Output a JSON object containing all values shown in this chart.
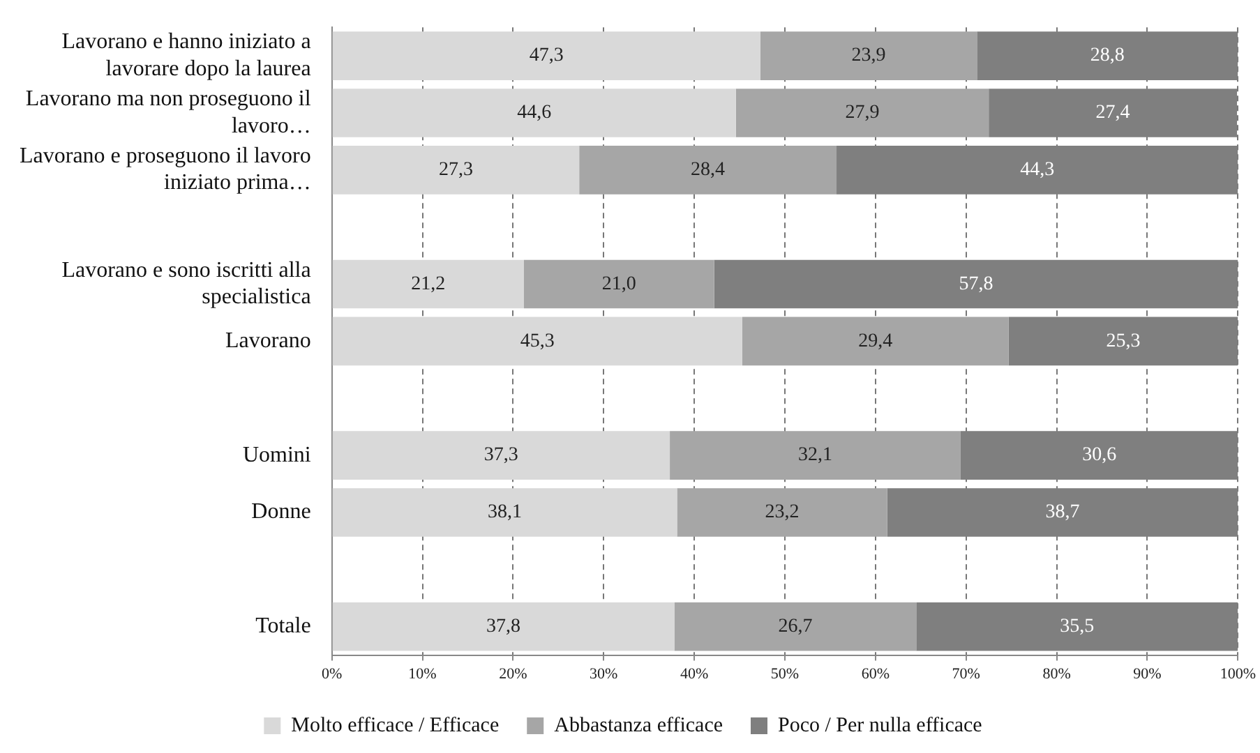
{
  "chart_data": {
    "type": "bar",
    "orientation": "horizontal",
    "stacked": true,
    "categories": [
      "Lavorano e hanno iniziato a lavorare dopo la laurea",
      "Lavorano ma non proseguono il lavoro…",
      "Lavorano e proseguono il lavoro iniziato prima…",
      null,
      "Lavorano e sono iscritti alla specialistica",
      "Lavorano",
      null,
      "Uomini",
      "Donne",
      null,
      "Totale"
    ],
    "series": [
      {
        "name": "Molto efficace / Efficace",
        "color": "#d9d9d9",
        "values": [
          47.3,
          44.6,
          27.3,
          null,
          21.2,
          45.3,
          null,
          37.3,
          38.1,
          null,
          37.8
        ],
        "value_labels": [
          "47,3",
          "44,6",
          "27,3",
          null,
          "21,2",
          "45,3",
          null,
          "37,3",
          "38,1",
          null,
          "37,8"
        ]
      },
      {
        "name": "Abbastanza efficace",
        "color": "#a6a6a6",
        "values": [
          23.9,
          27.9,
          28.4,
          null,
          21.0,
          29.4,
          null,
          32.1,
          23.2,
          null,
          26.7
        ],
        "value_labels": [
          "23,9",
          "27,9",
          "28,4",
          null,
          "21,0",
          "29,4",
          null,
          "32,1",
          "23,2",
          null,
          "26,7"
        ]
      },
      {
        "name": "Poco / Per nulla efficace",
        "color": "#7f7f7f",
        "values": [
          28.8,
          27.4,
          44.3,
          null,
          57.8,
          25.3,
          null,
          30.6,
          38.7,
          null,
          35.5
        ],
        "value_labels": [
          "28,8",
          "27,4",
          "44,3",
          null,
          "57,8",
          "25,3",
          null,
          "30,6",
          "38,7",
          null,
          "35,5"
        ]
      }
    ],
    "xlim": [
      0,
      100
    ],
    "xticks": [
      {
        "value": 0,
        "label": "0%"
      },
      {
        "value": 10,
        "label": "10%"
      },
      {
        "value": 20,
        "label": "20%"
      },
      {
        "value": 30,
        "label": "30%"
      },
      {
        "value": 40,
        "label": "40%"
      },
      {
        "value": 50,
        "label": "50%"
      },
      {
        "value": 60,
        "label": "60%"
      },
      {
        "value": 70,
        "label": "70%"
      },
      {
        "value": 80,
        "label": "80%"
      },
      {
        "value": 90,
        "label": "90%"
      },
      {
        "value": 100,
        "label": "100%"
      }
    ],
    "grid": "x",
    "legend": "bottom"
  }
}
